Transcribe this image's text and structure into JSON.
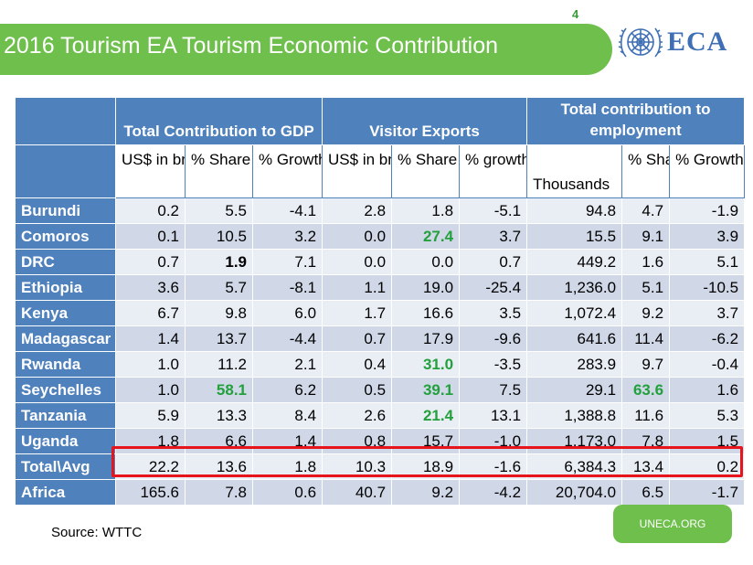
{
  "page_number": "4",
  "title": "2016 Tourism EA Tourism Economic Contribution",
  "logo": {
    "text": "ECA",
    "emblem": "un-emblem-icon"
  },
  "groups": {
    "gdp": "Total Contribution to GDP",
    "exports": "Visitor Exports",
    "employment": "Total contribution to employment"
  },
  "subheaders": [
    "US$ in bn",
    "% Share",
    "% Growth",
    "US$ in bn",
    "% Share",
    "% growth",
    "Thousands",
    "% Share",
    "% Growth"
  ],
  "rows": [
    {
      "name": "Burundi",
      "values": [
        "0.2",
        "5.5",
        "-4.1",
        "2.8",
        "1.8",
        "-5.1",
        "94.8",
        "4.7",
        "-1.9"
      ]
    },
    {
      "name": "Comoros",
      "values": [
        "0.1",
        "10.5",
        "3.2",
        "0.0",
        "27.4",
        "3.7",
        "15.5",
        "9.1",
        "3.9"
      ]
    },
    {
      "name": "DRC",
      "values": [
        "0.7",
        "1.9",
        "7.1",
        "0.0",
        "0.0",
        "0.7",
        "449.2",
        "1.6",
        "5.1"
      ]
    },
    {
      "name": "Ethiopia",
      "values": [
        "3.6",
        "5.7",
        "-8.1",
        "1.1",
        "19.0",
        "-25.4",
        "1,236.0",
        "5.1",
        "-10.5"
      ]
    },
    {
      "name": "Kenya",
      "values": [
        "6.7",
        "9.8",
        "6.0",
        "1.7",
        "16.6",
        "3.5",
        "1,072.4",
        "9.2",
        "3.7"
      ]
    },
    {
      "name": "Madagascar",
      "values": [
        "1.4",
        "13.7",
        "-4.4",
        "0.7",
        "17.9",
        "-9.6",
        "641.6",
        "11.4",
        "-6.2"
      ]
    },
    {
      "name": "Rwanda",
      "values": [
        "1.0",
        "11.2",
        "2.1",
        "0.4",
        "31.0",
        "-3.5",
        "283.9",
        "9.7",
        "-0.4"
      ]
    },
    {
      "name": "Seychelles",
      "values": [
        "1.0",
        "58.1",
        "6.2",
        "0.5",
        "39.1",
        "7.5",
        "29.1",
        "63.6",
        "1.6"
      ]
    },
    {
      "name": "Tanzania",
      "values": [
        "5.9",
        "13.3",
        "8.4",
        "2.6",
        "21.4",
        "13.1",
        "1,388.8",
        "11.6",
        "5.3"
      ]
    },
    {
      "name": "Uganda",
      "values": [
        "1.8",
        "6.6",
        "1.4",
        "0.8",
        "15.7",
        "-1.0",
        "1,173.0",
        "7.8",
        "1.5"
      ]
    },
    {
      "name": "Total\\Avg",
      "values": [
        "22.2",
        "13.6",
        "1.8",
        "10.3",
        "18.9",
        "-1.6",
        "6,384.3",
        "13.4",
        "0.2"
      ]
    },
    {
      "name": "Africa",
      "values": [
        "165.6",
        "7.8",
        "0.6",
        "40.7",
        "9.2",
        "-4.2",
        "20,704.0",
        "6.5",
        "-1.7"
      ]
    }
  ],
  "highlight_color": "#e8141b",
  "green_color": "#22a03c",
  "source": "Source: WTTC",
  "badge": "UNECA.ORG"
}
